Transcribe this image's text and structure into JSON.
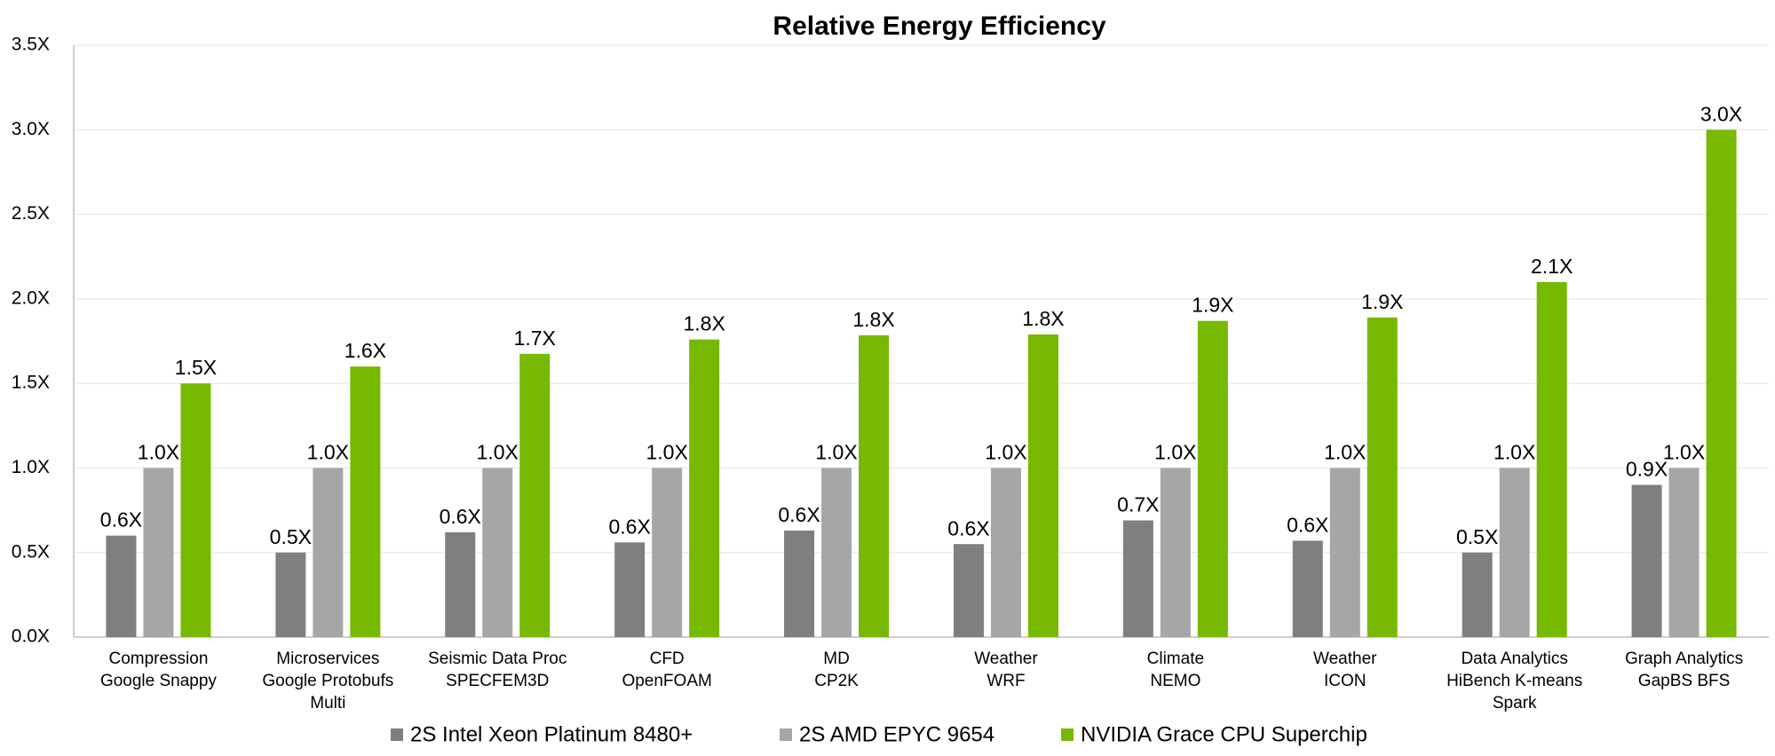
{
  "chart_data": {
    "type": "bar",
    "title": "Relative Energy Efficiency",
    "categories": [
      [
        "Compression",
        "Google Snappy"
      ],
      [
        "Microservices",
        "Google Protobufs",
        "Multi"
      ],
      [
        "Seismic Data Proc",
        "SPECFEM3D"
      ],
      [
        "CFD",
        "OpenFOAM"
      ],
      [
        "MD",
        "CP2K"
      ],
      [
        "Weather",
        "WRF"
      ],
      [
        "Climate",
        "NEMO"
      ],
      [
        "Weather",
        "ICON"
      ],
      [
        "Data Analytics",
        "HiBench K-means",
        "Spark"
      ],
      [
        "Graph Analytics",
        "GapBS BFS"
      ]
    ],
    "series": [
      {
        "name": "2S Intel Xeon Platinum 8480+",
        "color": "#7f7f7f",
        "values": [
          0.6,
          0.5,
          0.62,
          0.56,
          0.63,
          0.55,
          0.69,
          0.57,
          0.5,
          0.9
        ],
        "value_labels": [
          "0.6X",
          "0.5X",
          "0.6X",
          "0.6X",
          "0.6X",
          "0.6X",
          "0.7X",
          "0.6X",
          "0.5X",
          "0.9X"
        ]
      },
      {
        "name": "2S AMD EPYC 9654",
        "color": "#a6a6a6",
        "values": [
          1.0,
          1.0,
          1.0,
          1.0,
          1.0,
          1.0,
          1.0,
          1.0,
          1.0,
          1.0
        ],
        "value_labels": [
          "1.0X",
          "1.0X",
          "1.0X",
          "1.0X",
          "1.0X",
          "1.0X",
          "1.0X",
          "1.0X",
          "1.0X",
          "1.0X"
        ]
      },
      {
        "name": "NVIDIA Grace CPU Superchip",
        "color": "#76b900",
        "values": [
          1.5,
          1.6,
          1.675,
          1.76,
          1.785,
          1.79,
          1.87,
          1.89,
          2.1,
          3.0
        ],
        "value_labels": [
          "1.5X",
          "1.6X",
          "1.7X",
          "1.8X",
          "1.8X",
          "1.8X",
          "1.9X",
          "1.9X",
          "2.1X",
          "3.0X"
        ]
      }
    ],
    "ylim": [
      0,
      3.5
    ],
    "yticks": [
      {
        "value": 0,
        "label": "0.0X"
      },
      {
        "value": 0.5,
        "label": "0.5X"
      },
      {
        "value": 1,
        "label": "1.0X"
      },
      {
        "value": 1.5,
        "label": "1.5X"
      },
      {
        "value": 2,
        "label": "2.0X"
      },
      {
        "value": 2.5,
        "label": "2.5X"
      },
      {
        "value": 3,
        "label": "3.0X"
      },
      {
        "value": 3.5,
        "label": "3.5X"
      }
    ],
    "grid": true,
    "legend": "bottom"
  }
}
